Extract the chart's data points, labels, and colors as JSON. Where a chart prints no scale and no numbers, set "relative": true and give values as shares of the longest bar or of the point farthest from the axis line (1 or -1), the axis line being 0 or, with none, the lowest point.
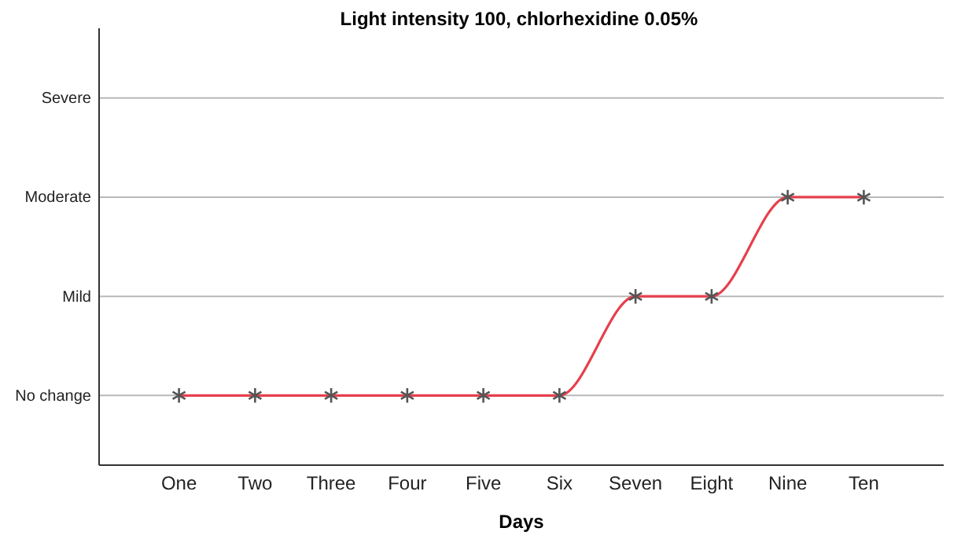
{
  "chart_data": {
    "type": "line",
    "title": "Light intensity 100, chlorhexidine 0.05%",
    "xlabel": "Days",
    "categories": [
      "One",
      "Two",
      "Three",
      "Four",
      "Five",
      "Six",
      "Seven",
      "Eight",
      "Nine",
      "Ten"
    ],
    "series": [
      {
        "color": "#e5404c",
        "values": [
          0.26,
          0.26,
          0.26,
          0.26,
          0.26,
          0.26,
          0.63,
          0.63,
          1,
          1
        ]
      }
    ],
    "relative": true,
    "ref_lines": [
      {
        "axis": "y",
        "value": 0.26,
        "label": "No change",
        "color": "#b8b8b8"
      },
      {
        "axis": "y",
        "value": 0.63,
        "label": "Mild",
        "color": "#b8b8b8"
      },
      {
        "axis": "y",
        "value": 1,
        "label": "Moderate",
        "color": "#b8b8b8"
      },
      {
        "axis": "y",
        "value": 1.37,
        "label": "Severe",
        "color": "#b8b8b8"
      }
    ],
    "marker": "cross",
    "line_style": "solid"
  }
}
